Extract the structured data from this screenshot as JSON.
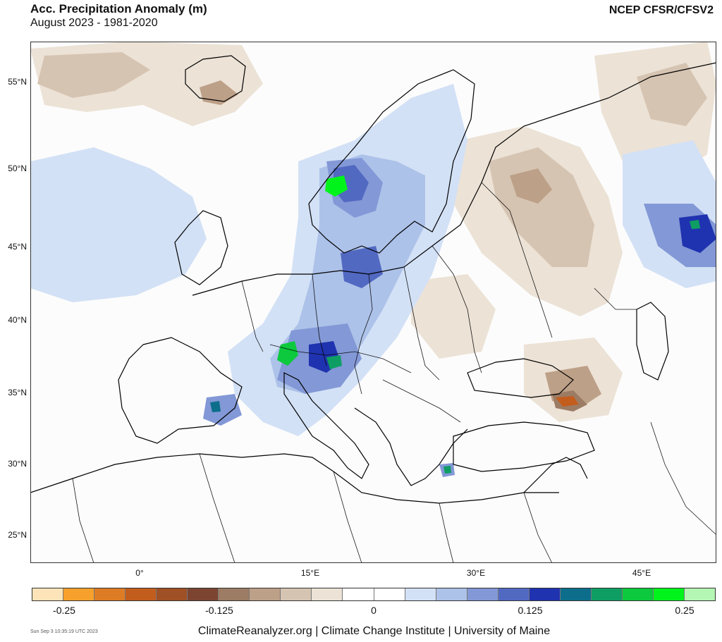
{
  "header": {
    "title": "Acc. Precipitation Anomaly (m)",
    "subtitle": "August 2023 - 1981-2020",
    "source": "NCEP CFSR/CFSV2"
  },
  "map": {
    "region": "Europe",
    "lat_labels": [
      "55°N",
      "50°N",
      "45°N",
      "40°N",
      "35°N",
      "30°N",
      "25°N"
    ],
    "lon_labels": [
      "0°",
      "15°E",
      "30°E",
      "45°E"
    ]
  },
  "colorbar": {
    "colors": [
      "#fde4b8",
      "#f7a12c",
      "#de7c25",
      "#c35d1e",
      "#9f5025",
      "#7c4531",
      "#9c7c64",
      "#bda088",
      "#d6c4b2",
      "#ece2d6",
      "#ffffff",
      "#ffffff",
      "#d3e1f6",
      "#adc2e9",
      "#8398d6",
      "#5269c2",
      "#1f33b0",
      "#0d6e8c",
      "#0e9e63",
      "#0cc93d",
      "#00f41c",
      "#b4f7b4"
    ],
    "labels": [
      "-0.25",
      "-0.125",
      "0",
      "0.125",
      "0.25"
    ]
  },
  "footer": {
    "timestamp": "Sun Sep  3 10:35:19 UTC 2023",
    "credit": "ClimateReanalyzer.org | Climate Change Institute | University of Maine"
  }
}
